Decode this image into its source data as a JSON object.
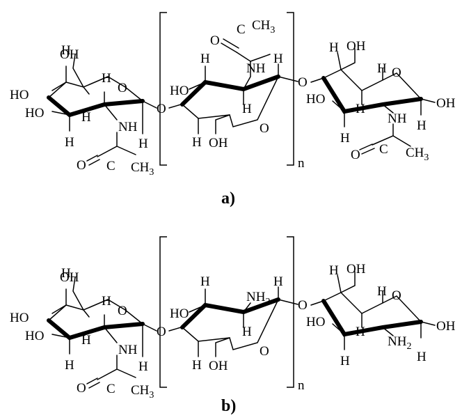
{
  "diagram": {
    "captions": {
      "a": "a)",
      "b": "b)"
    },
    "repeat_label": "n",
    "atoms": {
      "H": "H",
      "OH": "OH",
      "HO": "HO",
      "O": "O",
      "NH": "NH",
      "NH2_main": "NH",
      "NH2_sub": "2",
      "C": "C",
      "CH3_main": "CH",
      "CH3_sub": "3"
    }
  }
}
